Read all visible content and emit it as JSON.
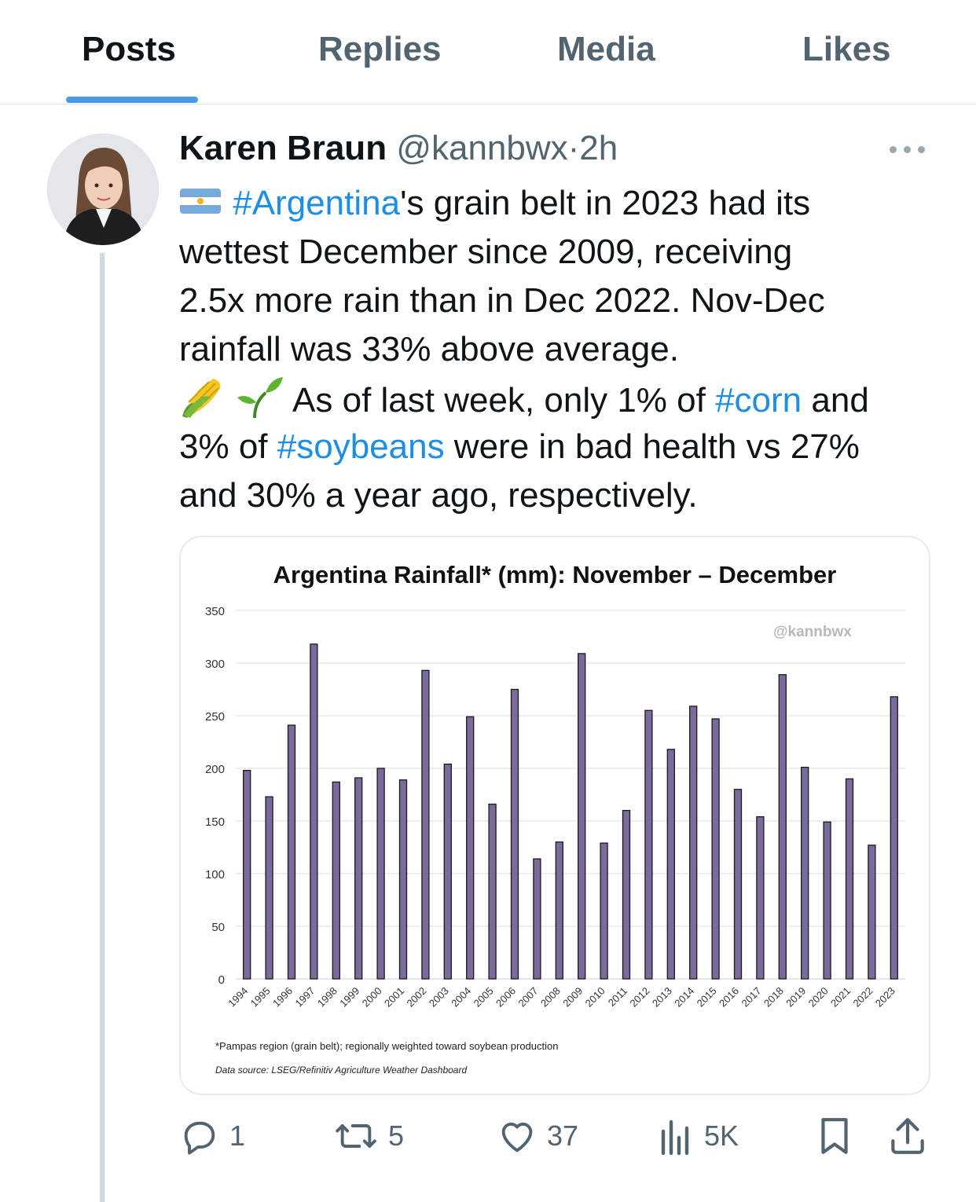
{
  "tabs": [
    {
      "label": "Posts",
      "active": true
    },
    {
      "label": "Replies",
      "active": false
    },
    {
      "label": "Media",
      "active": false
    },
    {
      "label": "Likes",
      "active": false
    }
  ],
  "post": {
    "author": "Karen Braun",
    "handle": "@kannbwx",
    "separator": "·",
    "time": "2h",
    "text": {
      "l1_tag": "#Argentina",
      "l1_rest": "'s grain belt in 2023 had its",
      "l2": "wettest December since 2009, receiving",
      "l3": "2.5x more rain than in Dec 2022. Nov-Dec",
      "l4": "rainfall was 33% above average.",
      "l5_a": " As of last week, only 1% of ",
      "l5_tag": "#corn",
      "l5_b": " and",
      "l6_a": "3% of ",
      "l6_tag": "#soybeans",
      "l6_b": " were in bad health vs 27%",
      "l7": "and 30% a year ago, respectively."
    },
    "emojis": [
      "argentina-flag",
      "corn",
      "seedling"
    ],
    "actions": {
      "reply_count": "1",
      "repost_count": "5",
      "like_count": "37",
      "views_count": "5K"
    },
    "media": {
      "watermark": "@kannbwx",
      "footnote": "*Pampas region (grain belt); regionally weighted toward soybean production",
      "datasource": "Data source: LSEG/Refinitiv Agriculture Weather Dashboard"
    }
  },
  "colors": {
    "accent": "#1d9bf0",
    "tab_indicator": "#4a99e9",
    "bar_fill": "#7b6a9e",
    "secondary_text": "#536471"
  },
  "chart_data": {
    "type": "bar",
    "title": "Argentina Rainfall* (mm): November – December",
    "categories": [
      "1994",
      "1995",
      "1996",
      "1997",
      "1998",
      "1999",
      "2000",
      "2001",
      "2002",
      "2003",
      "2004",
      "2005",
      "2006",
      "2007",
      "2008",
      "2009",
      "2010",
      "2011",
      "2012",
      "2013",
      "2014",
      "2015",
      "2016",
      "2017",
      "2018",
      "2019",
      "2020",
      "2021",
      "2022",
      "2023"
    ],
    "values": [
      198,
      173,
      241,
      318,
      187,
      191,
      200,
      189,
      293,
      204,
      249,
      166,
      275,
      114,
      130,
      309,
      129,
      160,
      255,
      218,
      259,
      247,
      180,
      154,
      289,
      201,
      149,
      190,
      127,
      268
    ],
    "yticks": [
      0,
      50,
      100,
      150,
      200,
      250,
      300,
      350
    ],
    "ylim": [
      0,
      350
    ],
    "xlabel": "",
    "ylabel": "",
    "grid": true,
    "legend": "none"
  }
}
